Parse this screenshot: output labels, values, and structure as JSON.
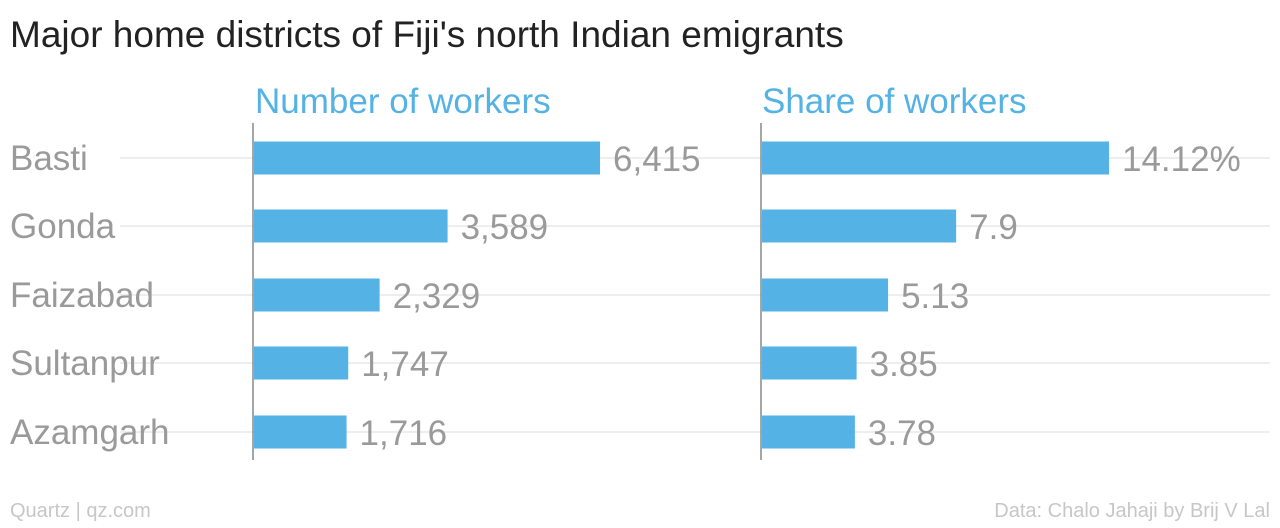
{
  "title": "Major home districts of Fiji's north Indian emigrants",
  "footer": {
    "source_left": "Quartz | qz.com",
    "source_right": "Data: Chalo Jahaji by Brij V Lal"
  },
  "colors": {
    "bar": "#54b2e4",
    "panel_title": "#54b2e4",
    "category_label": "#9a9a9a",
    "value_label": "#9a9a9a",
    "gridline": "#e8e8e8",
    "axis": "#888888"
  },
  "chart_data": [
    {
      "type": "bar",
      "orientation": "horizontal",
      "title": "Number of workers",
      "categories": [
        "Basti",
        "Gonda",
        "Faizabad",
        "Sultanpur",
        "Azamgarh"
      ],
      "values": [
        6415,
        3589,
        2329,
        1747,
        1716
      ],
      "value_labels": [
        "6,415",
        "3,589",
        "2,329",
        "1,747",
        "1,716"
      ],
      "xlim": [
        0,
        6415
      ]
    },
    {
      "type": "bar",
      "orientation": "horizontal",
      "title": "Share of workers",
      "categories": [
        "Basti",
        "Gonda",
        "Faizabad",
        "Sultanpur",
        "Azamgarh"
      ],
      "values": [
        14.12,
        7.9,
        5.13,
        3.85,
        3.78
      ],
      "value_labels": [
        "14.12%",
        "7.9",
        "5.13",
        "3.85",
        "3.78"
      ],
      "xlim": [
        0,
        14.12
      ]
    }
  ]
}
